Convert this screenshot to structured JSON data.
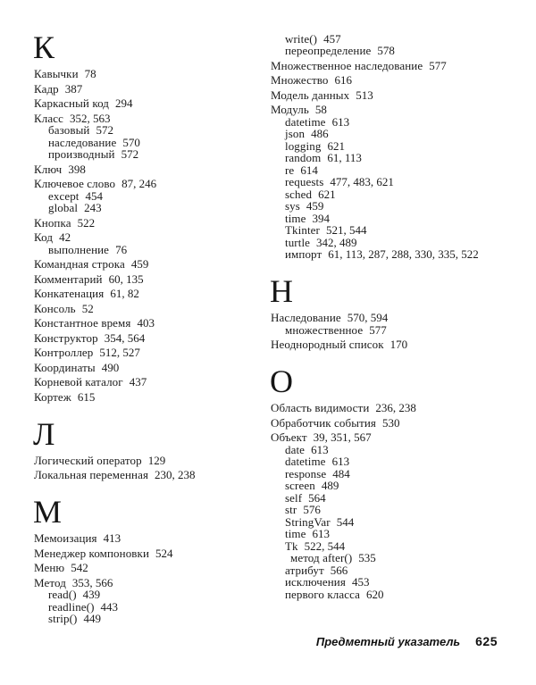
{
  "footer": {
    "label": "Предметный указатель",
    "page_number": "625"
  },
  "columns": [
    {
      "blocks": [
        {
          "kind": "letter",
          "text": "К"
        },
        {
          "kind": "entry",
          "level": 0,
          "term": "Кавычки",
          "pages": "78"
        },
        {
          "kind": "entry",
          "level": 0,
          "term": "Кадр",
          "pages": "387"
        },
        {
          "kind": "entry",
          "level": 0,
          "term": "Каркасный код",
          "pages": "294"
        },
        {
          "kind": "entry",
          "level": 0,
          "term": "Класс",
          "pages": "352, 563"
        },
        {
          "kind": "entry",
          "level": 1,
          "term": "базовый",
          "pages": "572"
        },
        {
          "kind": "entry",
          "level": 1,
          "term": "наследование",
          "pages": "570"
        },
        {
          "kind": "entry",
          "level": 1,
          "term": "производный",
          "pages": "572"
        },
        {
          "kind": "entry",
          "level": 0,
          "term": "Ключ",
          "pages": "398"
        },
        {
          "kind": "entry",
          "level": 0,
          "term": "Ключевое слово",
          "pages": "87, 246"
        },
        {
          "kind": "entry",
          "level": 1,
          "term": "except",
          "pages": "454"
        },
        {
          "kind": "entry",
          "level": 1,
          "term": "global",
          "pages": "243"
        },
        {
          "kind": "entry",
          "level": 0,
          "term": "Кнопка",
          "pages": "522"
        },
        {
          "kind": "entry",
          "level": 0,
          "term": "Код",
          "pages": "42"
        },
        {
          "kind": "entry",
          "level": 1,
          "term": "выполнение",
          "pages": "76"
        },
        {
          "kind": "entry",
          "level": 0,
          "term": "Командная строка",
          "pages": "459"
        },
        {
          "kind": "entry",
          "level": 0,
          "term": "Комментарий",
          "pages": "60, 135"
        },
        {
          "kind": "entry",
          "level": 0,
          "term": "Конкатенация",
          "pages": "61, 82"
        },
        {
          "kind": "entry",
          "level": 0,
          "term": "Консоль",
          "pages": "52"
        },
        {
          "kind": "entry",
          "level": 0,
          "term": "Константное время",
          "pages": "403"
        },
        {
          "kind": "entry",
          "level": 0,
          "term": "Конструктор",
          "pages": "354, 564"
        },
        {
          "kind": "entry",
          "level": 0,
          "term": "Контроллер",
          "pages": "512, 527"
        },
        {
          "kind": "entry",
          "level": 0,
          "term": "Координаты",
          "pages": "490"
        },
        {
          "kind": "entry",
          "level": 0,
          "term": "Корневой каталог",
          "pages": "437"
        },
        {
          "kind": "entry",
          "level": 0,
          "term": "Кортеж",
          "pages": "615"
        },
        {
          "kind": "letter",
          "text": "Л"
        },
        {
          "kind": "entry",
          "level": 0,
          "term": "Логический оператор",
          "pages": "129"
        },
        {
          "kind": "entry",
          "level": 0,
          "term": "Локальная переменная",
          "pages": "230, 238"
        },
        {
          "kind": "letter",
          "text": "М"
        },
        {
          "kind": "entry",
          "level": 0,
          "term": "Мемоизация",
          "pages": "413"
        },
        {
          "kind": "entry",
          "level": 0,
          "term": "Менеджер компоновки",
          "pages": "524"
        },
        {
          "kind": "entry",
          "level": 0,
          "term": "Меню",
          "pages": "542"
        },
        {
          "kind": "entry",
          "level": 0,
          "term": "Метод",
          "pages": "353, 566"
        },
        {
          "kind": "entry",
          "level": 1,
          "term": "read()",
          "pages": "439"
        },
        {
          "kind": "entry",
          "level": 1,
          "term": "readline()",
          "pages": "443"
        },
        {
          "kind": "entry",
          "level": 1,
          "term": "strip()",
          "pages": "449"
        }
      ]
    },
    {
      "blocks": [
        {
          "kind": "entry",
          "level": 1,
          "term": "write()",
          "pages": "457"
        },
        {
          "kind": "entry",
          "level": 1,
          "term": "переопределение",
          "pages": "578"
        },
        {
          "kind": "entry",
          "level": 0,
          "term": "Множественное наследование",
          "pages": "577"
        },
        {
          "kind": "entry",
          "level": 0,
          "term": "Множество",
          "pages": "616"
        },
        {
          "kind": "entry",
          "level": 0,
          "term": "Модель данных",
          "pages": "513"
        },
        {
          "kind": "entry",
          "level": 0,
          "term": "Модуль",
          "pages": "58"
        },
        {
          "kind": "entry",
          "level": 1,
          "term": "datetime",
          "pages": "613"
        },
        {
          "kind": "entry",
          "level": 1,
          "term": "json",
          "pages": "486"
        },
        {
          "kind": "entry",
          "level": 1,
          "term": "logging",
          "pages": "621"
        },
        {
          "kind": "entry",
          "level": 1,
          "term": "random",
          "pages": "61, 113"
        },
        {
          "kind": "entry",
          "level": 1,
          "term": "re",
          "pages": "614"
        },
        {
          "kind": "entry",
          "level": 1,
          "term": "requests",
          "pages": "477, 483, 621"
        },
        {
          "kind": "entry",
          "level": 1,
          "term": "sched",
          "pages": "621"
        },
        {
          "kind": "entry",
          "level": 1,
          "term": "sys",
          "pages": "459"
        },
        {
          "kind": "entry",
          "level": 1,
          "term": "time",
          "pages": "394"
        },
        {
          "kind": "entry",
          "level": 1,
          "term": "Tkinter",
          "pages": "521, 544"
        },
        {
          "kind": "entry",
          "level": 1,
          "term": "turtle",
          "pages": "342, 489"
        },
        {
          "kind": "entry",
          "level": 1,
          "term": "импорт",
          "pages": "61, 113, 287, 288, 330, 335, 522"
        },
        {
          "kind": "letter",
          "text": "Н"
        },
        {
          "kind": "entry",
          "level": 0,
          "term": "Наследование",
          "pages": "570, 594"
        },
        {
          "kind": "entry",
          "level": 1,
          "term": "множественное",
          "pages": "577"
        },
        {
          "kind": "entry",
          "level": 0,
          "term": "Неоднородный список",
          "pages": "170"
        },
        {
          "kind": "letter",
          "text": "О"
        },
        {
          "kind": "entry",
          "level": 0,
          "term": "Область видимости",
          "pages": "236, 238"
        },
        {
          "kind": "entry",
          "level": 0,
          "term": "Обработчик события",
          "pages": "530"
        },
        {
          "kind": "entry",
          "level": 0,
          "term": "Объект",
          "pages": "39, 351, 567"
        },
        {
          "kind": "entry",
          "level": 1,
          "term": "date",
          "pages": "613"
        },
        {
          "kind": "entry",
          "level": 1,
          "term": "datetime",
          "pages": "613"
        },
        {
          "kind": "entry",
          "level": 1,
          "term": "response",
          "pages": "484"
        },
        {
          "kind": "entry",
          "level": 1,
          "term": "screen",
          "pages": "489"
        },
        {
          "kind": "entry",
          "level": 1,
          "term": "self",
          "pages": "564"
        },
        {
          "kind": "entry",
          "level": 1,
          "term": "str",
          "pages": "576"
        },
        {
          "kind": "entry",
          "level": 1,
          "term": "StringVar",
          "pages": "544"
        },
        {
          "kind": "entry",
          "level": 1,
          "term": "time",
          "pages": "613"
        },
        {
          "kind": "entry",
          "level": 1,
          "term": "Tk",
          "pages": "522, 544"
        },
        {
          "kind": "entry",
          "level": 2,
          "term": "метод after()",
          "pages": "535"
        },
        {
          "kind": "entry",
          "level": 1,
          "term": "атрибут",
          "pages": "566"
        },
        {
          "kind": "entry",
          "level": 1,
          "term": "исключения",
          "pages": "453"
        },
        {
          "kind": "entry",
          "level": 1,
          "term": "первого класса",
          "pages": "620"
        }
      ]
    }
  ]
}
